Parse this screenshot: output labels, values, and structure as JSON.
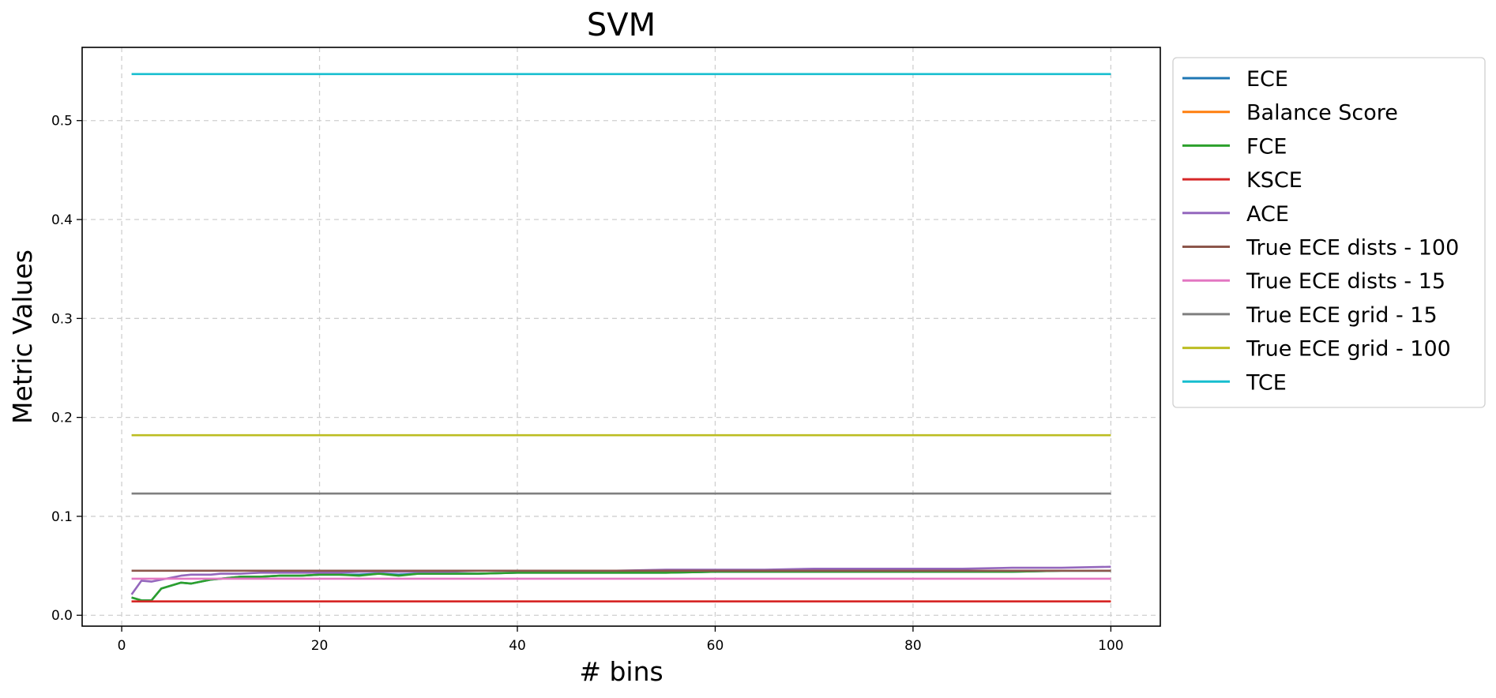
{
  "chart_data": {
    "type": "line",
    "title": "SVM",
    "xlabel": "# bins",
    "ylabel": "Metric Values",
    "xlim": [
      -4,
      105
    ],
    "ylim": [
      -0.011,
      0.574
    ],
    "xticks": [
      0,
      20,
      40,
      60,
      80,
      100
    ],
    "yticks": [
      0.0,
      0.1,
      0.2,
      0.3,
      0.4,
      0.5
    ],
    "grid": true,
    "legend_position": "outside-upper-right",
    "x": [
      1,
      2,
      3,
      4,
      5,
      6,
      7,
      8,
      9,
      10,
      12,
      14,
      16,
      18,
      20,
      22,
      24,
      26,
      28,
      30,
      33,
      36,
      40,
      45,
      50,
      55,
      60,
      65,
      70,
      75,
      80,
      85,
      90,
      95,
      100
    ],
    "series": [
      {
        "name": "ECE",
        "color": "#1f77b4",
        "values": [
          0.018,
          0.015,
          0.015,
          0.027,
          0.03,
          0.033,
          0.032,
          0.034,
          0.036,
          0.037,
          0.039,
          0.039,
          0.04,
          0.04,
          0.041,
          0.041,
          0.041,
          0.042,
          0.041,
          0.042,
          0.042,
          0.042,
          0.043,
          0.043,
          0.043,
          0.043,
          0.044,
          0.044,
          0.044,
          0.044,
          0.044,
          0.044,
          0.044,
          0.045,
          0.045
        ]
      },
      {
        "name": "Balance Score",
        "color": "#ff7f0e",
        "values": [
          0.014,
          0.014,
          0.014,
          0.014,
          0.014,
          0.014,
          0.014,
          0.014,
          0.014,
          0.014,
          0.014,
          0.014,
          0.014,
          0.014,
          0.014,
          0.014,
          0.014,
          0.014,
          0.014,
          0.014,
          0.014,
          0.014,
          0.014,
          0.014,
          0.014,
          0.014,
          0.014,
          0.014,
          0.014,
          0.014,
          0.014,
          0.014,
          0.014,
          0.014,
          0.014
        ]
      },
      {
        "name": "FCE",
        "color": "#2ca02c",
        "values": [
          0.018,
          0.015,
          0.015,
          0.027,
          0.03,
          0.033,
          0.032,
          0.034,
          0.036,
          0.037,
          0.039,
          0.039,
          0.04,
          0.04,
          0.041,
          0.041,
          0.04,
          0.042,
          0.04,
          0.042,
          0.042,
          0.042,
          0.043,
          0.043,
          0.043,
          0.043,
          0.044,
          0.044,
          0.044,
          0.044,
          0.044,
          0.044,
          0.044,
          0.045,
          0.045
        ]
      },
      {
        "name": "KSCE",
        "color": "#d62728",
        "values": [
          0.014,
          0.014,
          0.014,
          0.014,
          0.014,
          0.014,
          0.014,
          0.014,
          0.014,
          0.014,
          0.014,
          0.014,
          0.014,
          0.014,
          0.014,
          0.014,
          0.014,
          0.014,
          0.014,
          0.014,
          0.014,
          0.014,
          0.014,
          0.014,
          0.014,
          0.014,
          0.014,
          0.014,
          0.014,
          0.014,
          0.014,
          0.014,
          0.014,
          0.014,
          0.014
        ]
      },
      {
        "name": "ACE",
        "color": "#9467bd",
        "values": [
          0.021,
          0.035,
          0.034,
          0.036,
          0.038,
          0.04,
          0.041,
          0.041,
          0.041,
          0.042,
          0.042,
          0.043,
          0.043,
          0.043,
          0.043,
          0.043,
          0.044,
          0.044,
          0.044,
          0.044,
          0.044,
          0.045,
          0.045,
          0.045,
          0.045,
          0.046,
          0.046,
          0.046,
          0.047,
          0.047,
          0.047,
          0.047,
          0.048,
          0.048,
          0.049
        ]
      },
      {
        "name": "True ECE dists - 100",
        "color": "#8c564b",
        "values": [
          0.045,
          0.045,
          0.045,
          0.045,
          0.045,
          0.045,
          0.045,
          0.045,
          0.045,
          0.045,
          0.045,
          0.045,
          0.045,
          0.045,
          0.045,
          0.045,
          0.045,
          0.045,
          0.045,
          0.045,
          0.045,
          0.045,
          0.045,
          0.045,
          0.045,
          0.045,
          0.045,
          0.045,
          0.045,
          0.045,
          0.045,
          0.045,
          0.045,
          0.045,
          0.045
        ]
      },
      {
        "name": "True ECE dists - 15",
        "color": "#e377c2",
        "values": [
          0.037,
          0.037,
          0.037,
          0.037,
          0.037,
          0.037,
          0.037,
          0.037,
          0.037,
          0.037,
          0.037,
          0.037,
          0.037,
          0.037,
          0.037,
          0.037,
          0.037,
          0.037,
          0.037,
          0.037,
          0.037,
          0.037,
          0.037,
          0.037,
          0.037,
          0.037,
          0.037,
          0.037,
          0.037,
          0.037,
          0.037,
          0.037,
          0.037,
          0.037,
          0.037
        ]
      },
      {
        "name": "True ECE grid - 15",
        "color": "#7f7f7f",
        "values": [
          0.123,
          0.123,
          0.123,
          0.123,
          0.123,
          0.123,
          0.123,
          0.123,
          0.123,
          0.123,
          0.123,
          0.123,
          0.123,
          0.123,
          0.123,
          0.123,
          0.123,
          0.123,
          0.123,
          0.123,
          0.123,
          0.123,
          0.123,
          0.123,
          0.123,
          0.123,
          0.123,
          0.123,
          0.123,
          0.123,
          0.123,
          0.123,
          0.123,
          0.123,
          0.123
        ]
      },
      {
        "name": "True ECE grid - 100",
        "color": "#bcbd22",
        "values": [
          0.182,
          0.182,
          0.182,
          0.182,
          0.182,
          0.182,
          0.182,
          0.182,
          0.182,
          0.182,
          0.182,
          0.182,
          0.182,
          0.182,
          0.182,
          0.182,
          0.182,
          0.182,
          0.182,
          0.182,
          0.182,
          0.182,
          0.182,
          0.182,
          0.182,
          0.182,
          0.182,
          0.182,
          0.182,
          0.182,
          0.182,
          0.182,
          0.182,
          0.182,
          0.182
        ]
      },
      {
        "name": "TCE",
        "color": "#17becf",
        "values": [
          0.547,
          0.547,
          0.547,
          0.547,
          0.547,
          0.547,
          0.547,
          0.547,
          0.547,
          0.547,
          0.547,
          0.547,
          0.547,
          0.547,
          0.547,
          0.547,
          0.547,
          0.547,
          0.547,
          0.547,
          0.547,
          0.547,
          0.547,
          0.547,
          0.547,
          0.547,
          0.547,
          0.547,
          0.547,
          0.547,
          0.547,
          0.547,
          0.547,
          0.547,
          0.547
        ]
      }
    ]
  }
}
